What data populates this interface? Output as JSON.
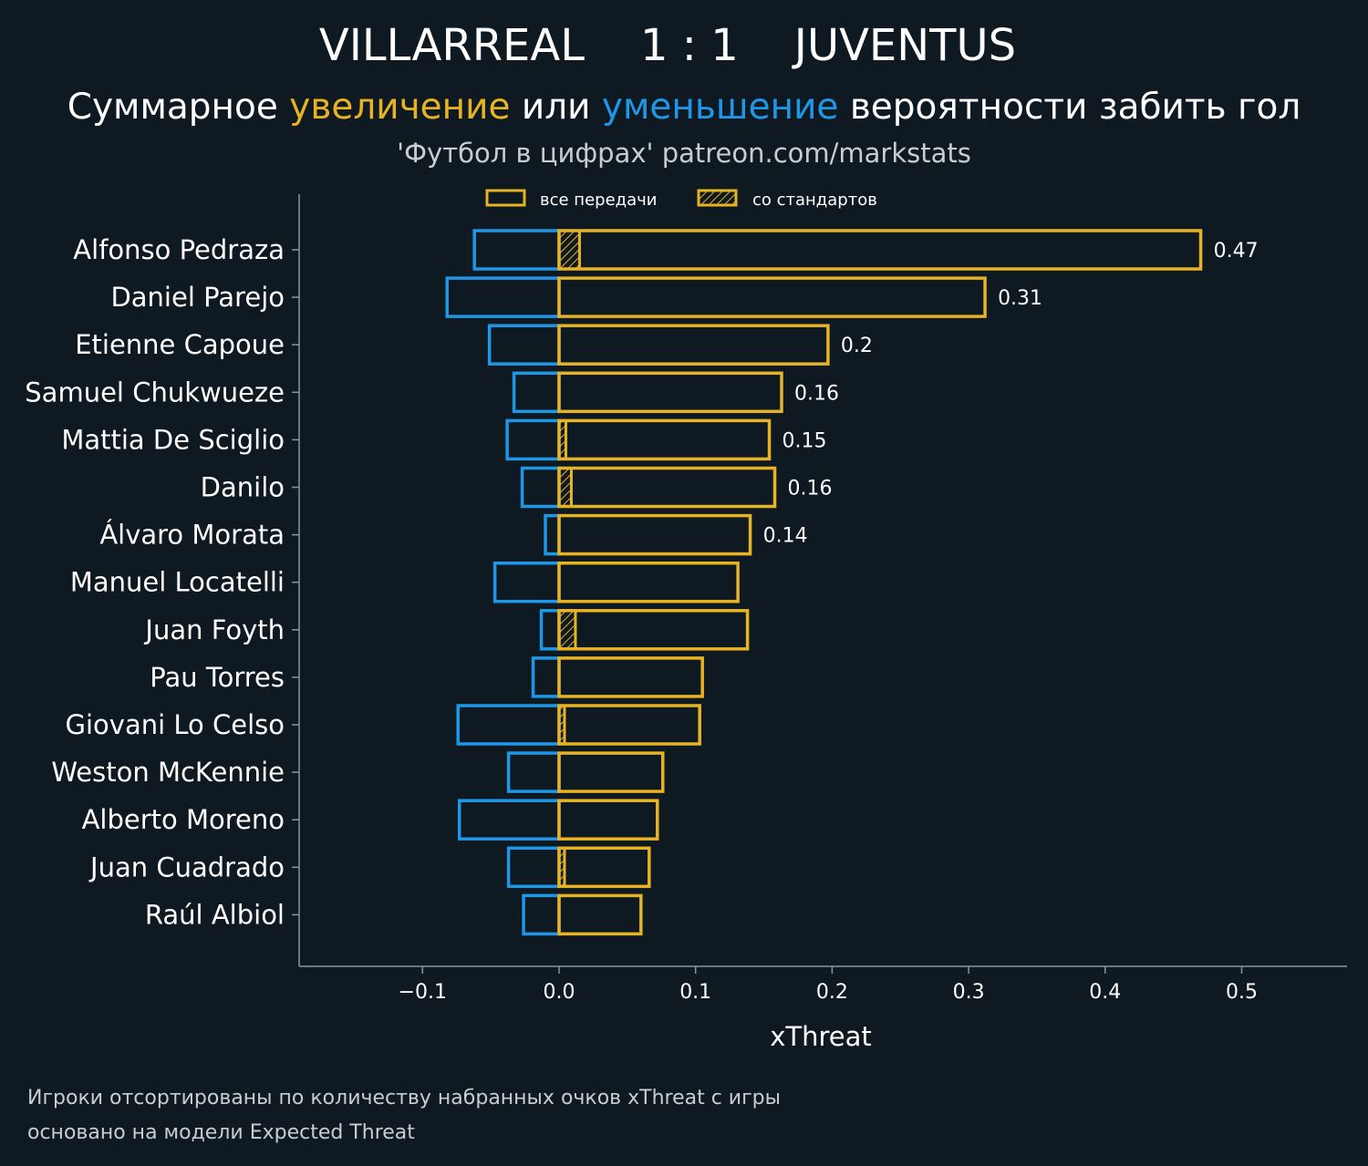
{
  "header": {
    "home_team": "VILLARREAL",
    "score": "1 : 1",
    "away_team": "JUVENTUS",
    "subtitle_part1": "Суммарное ",
    "subtitle_increase": "увеличение",
    "subtitle_part2": " или ",
    "subtitle_decrease": "уменьшение",
    "subtitle_part3": " вероятности забить гол",
    "source": "'Футбол в цифрах' patreon.com/markstats"
  },
  "legend": {
    "all_passes": "все передачи",
    "set_pieces": "со стандартов"
  },
  "footer": {
    "line1": "Игроки отсортированы по количеству набранных очков xThreat с игры",
    "line2": "основано на модели Expected Threat"
  },
  "colors": {
    "background": "#0f1921",
    "positive": "#e6b325",
    "negative": "#1f97e6",
    "axis": "#8a969e",
    "text": "#ffffff",
    "muted_text": "#c8cdd0"
  },
  "chart_data": {
    "type": "bar",
    "orientation": "horizontal",
    "xlabel": "xThreat",
    "xlim": [
      -0.19,
      0.58
    ],
    "xticks": [
      -0.1,
      0.0,
      0.1,
      0.2,
      0.3,
      0.4,
      0.5
    ],
    "xtick_labels": [
      "−0.1",
      "0.0",
      "0.1",
      "0.2",
      "0.3",
      "0.4",
      "0.5"
    ],
    "categories": [
      "Alfonso Pedraza",
      "Daniel Parejo",
      "Etienne Capoue",
      "Samuel Chukwueze",
      "Mattia De Sciglio",
      "Danilo",
      "Álvaro Morata",
      "Manuel Locatelli",
      "Juan Foyth",
      "Pau Torres",
      "Giovani Lo Celso",
      "Weston McKennie",
      "Alberto Moreno",
      "Juan Cuadrado",
      "Raúl Albiol"
    ],
    "series": [
      {
        "name": "все передачи (увеличение)",
        "values": [
          0.47,
          0.312,
          0.197,
          0.163,
          0.154,
          0.158,
          0.14,
          0.131,
          0.138,
          0.105,
          0.103,
          0.076,
          0.072,
          0.066,
          0.06
        ]
      },
      {
        "name": "уменьшение",
        "values": [
          -0.062,
          -0.082,
          -0.051,
          -0.033,
          -0.038,
          -0.027,
          -0.01,
          -0.047,
          -0.013,
          -0.019,
          -0.074,
          -0.037,
          -0.073,
          -0.037,
          -0.026
        ]
      },
      {
        "name": "со стандартов",
        "values": [
          0.015,
          0.0,
          0.0,
          0.0,
          0.005,
          0.009,
          0.0,
          0.0,
          0.012,
          0.0,
          0.004,
          0.0,
          0.0,
          0.004,
          0.0
        ]
      }
    ],
    "value_labels": [
      "0.47",
      "0.31",
      "0.2",
      "0.16",
      "0.15",
      "0.16",
      "0.14",
      "",
      "",
      "",
      "",
      "",
      "",
      "",
      ""
    ],
    "legend_position": "top-center"
  }
}
